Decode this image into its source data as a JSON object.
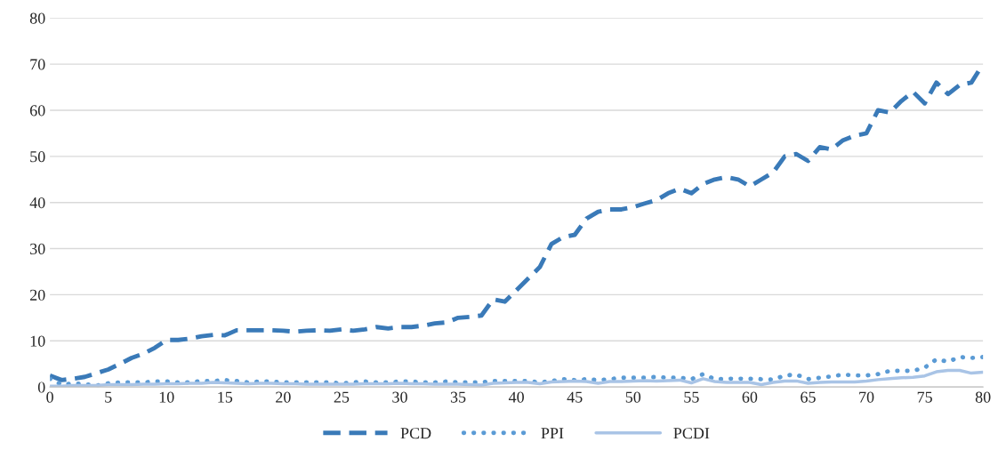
{
  "chart_data": {
    "type": "line",
    "x": [
      0,
      1,
      2,
      3,
      4,
      5,
      6,
      7,
      8,
      9,
      10,
      11,
      12,
      13,
      14,
      15,
      16,
      17,
      18,
      19,
      20,
      21,
      22,
      23,
      24,
      25,
      26,
      27,
      28,
      29,
      30,
      31,
      32,
      33,
      34,
      35,
      36,
      37,
      38,
      39,
      40,
      41,
      42,
      43,
      44,
      45,
      46,
      47,
      48,
      49,
      50,
      51,
      52,
      53,
      54,
      55,
      56,
      57,
      58,
      59,
      60,
      61,
      62,
      63,
      64,
      65,
      66,
      67,
      68,
      69,
      70,
      71,
      72,
      73,
      74,
      75,
      76,
      77,
      78,
      79,
      80
    ],
    "series": [
      {
        "name": "PCD",
        "color": "#3a7ab8",
        "line_style": "dashed",
        "values": [
          2.5,
          1.5,
          1.8,
          2.2,
          3,
          3.8,
          5,
          6.3,
          7.2,
          8.5,
          10.2,
          10.2,
          10.5,
          11,
          11.3,
          11.2,
          12.3,
          12.3,
          12.3,
          12.3,
          12.2,
          12,
          12.2,
          12.3,
          12.2,
          12.5,
          12.2,
          12.5,
          13,
          12.7,
          13,
          13,
          13.3,
          13.8,
          14,
          15,
          15.2,
          15.5,
          19,
          18.5,
          21,
          23.5,
          26,
          31,
          32.5,
          33,
          36.5,
          38,
          38.5,
          38.5,
          39,
          39.8,
          40.5,
          42,
          43,
          42,
          44,
          45,
          45.5,
          45,
          43.5,
          45,
          46.5,
          50,
          50.5,
          49,
          52,
          51.5,
          53.5,
          54.5,
          55,
          60,
          59.5,
          62,
          64,
          61.5,
          66,
          63.5,
          65.5,
          66,
          70
        ]
      },
      {
        "name": "PPI",
        "color": "#5b9bd5",
        "line_style": "dotted",
        "values": [
          1.8,
          0.5,
          0.8,
          0.6,
          0.3,
          0.8,
          1,
          1,
          1,
          1.2,
          1.2,
          1,
          1,
          1.3,
          1.3,
          1.5,
          1.3,
          1,
          1.2,
          1.2,
          1,
          1,
          1,
          1,
          1,
          0.8,
          1,
          1.2,
          1,
          1,
          1.2,
          1.2,
          1,
          1,
          1.2,
          1,
          1,
          1,
          1.3,
          1.3,
          1.3,
          1.3,
          1,
          1.3,
          1.7,
          1.5,
          1.7,
          1.5,
          1.7,
          2,
          2,
          2,
          2.2,
          2,
          2,
          1.7,
          2.8,
          1.7,
          1.8,
          1.8,
          1.8,
          1.7,
          1.6,
          2.5,
          2.7,
          1.7,
          2,
          2.3,
          2.7,
          2.5,
          2.5,
          2.8,
          3.5,
          3.5,
          3.5,
          4.2,
          6,
          5.5,
          6.5,
          6.3,
          6.5
        ]
      },
      {
        "name": "PCDI",
        "color": "#a9c4e6",
        "line_style": "solid",
        "values": [
          0.2,
          0.2,
          0.3,
          0.3,
          0.3,
          0.5,
          0.5,
          0.5,
          0.6,
          0.6,
          0.7,
          0.7,
          0.8,
          0.8,
          1,
          0.9,
          0.8,
          0.7,
          0.8,
          0.8,
          0.7,
          0.7,
          0.6,
          0.6,
          0.6,
          0.6,
          0.6,
          0.7,
          0.7,
          0.7,
          0.8,
          0.7,
          0.7,
          0.6,
          0.6,
          0.6,
          0.5,
          0.4,
          0.8,
          0.9,
          1,
          1,
          0.7,
          1.1,
          1.2,
          1.3,
          1.2,
          0.8,
          1.2,
          1.2,
          1.3,
          1.4,
          1.3,
          1.4,
          1.5,
          0.9,
          1.8,
          1.2,
          1,
          1,
          1,
          0.5,
          1,
          1.3,
          1.3,
          0.8,
          1,
          1.1,
          1.1,
          1.1,
          1.3,
          1.6,
          1.8,
          2,
          2.1,
          2.4,
          3.3,
          3.6,
          3.6,
          3,
          3.2
        ]
      }
    ],
    "xlim": [
      0,
      80
    ],
    "xticks": [
      0,
      5,
      10,
      15,
      20,
      25,
      30,
      35,
      40,
      45,
      50,
      55,
      60,
      65,
      70,
      75,
      80
    ],
    "ylim": [
      0,
      80
    ],
    "yticks": [
      0,
      10,
      20,
      30,
      40,
      50,
      60,
      70,
      80
    ],
    "grid": "y",
    "legend": "bottom",
    "marker": "none"
  }
}
